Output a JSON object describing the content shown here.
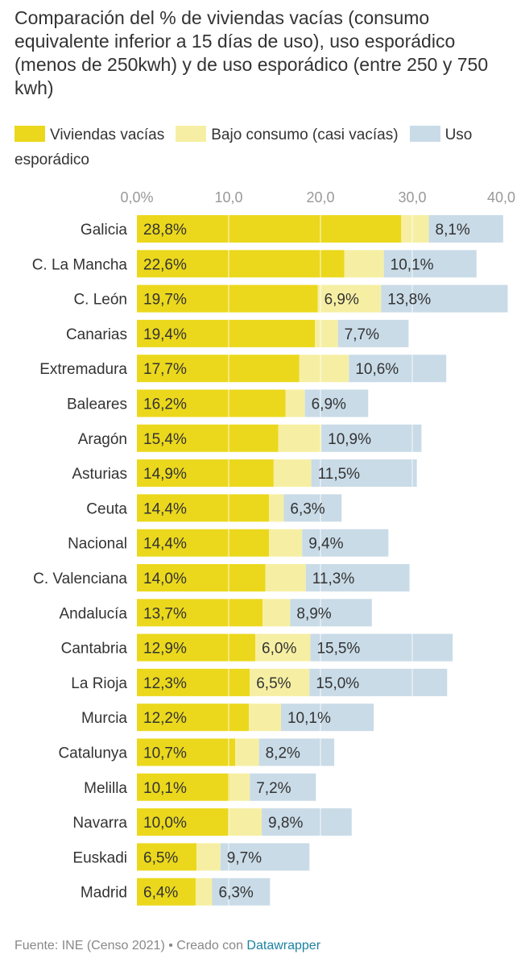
{
  "title": "Comparación del % de viviendas vacías (consumo equivalente inferior a 15 días de uso), uso esporádico (menos de 250kwh) y de uso esporádico (entre 250 y 750 kwh)",
  "footer": {
    "source": "Fuente: INE (Censo 2021) • Creado con ",
    "tool": "Datawrapper"
  },
  "chart_data": {
    "type": "bar",
    "orientation": "horizontal-stacked",
    "title": "Comparación del % de viviendas vacías (consumo equivalente inferior a 15 días de uso), uso esporádico (menos de 250kwh) y de uso esporádico (entre 250 y 750 kwh)",
    "xlim": [
      0,
      40
    ],
    "ticks": [
      "0,0%",
      "10,0",
      "20,0",
      "30,0",
      "40,0"
    ],
    "tick_values": [
      0,
      10,
      20,
      30,
      40
    ],
    "legend_position": "top",
    "categories": [
      "Galicia",
      "C. La Mancha",
      "C. León",
      "Canarias",
      "Extremadura",
      "Baleares",
      "Aragón",
      "Asturias",
      "Ceuta",
      "Nacional",
      "C. Valenciana",
      "Andalucía",
      "Cantabria",
      "La Rioja",
      "Murcia",
      "Catalunya",
      "Melilla",
      "Navarra",
      "Euskadi",
      "Madrid"
    ],
    "series": [
      {
        "name": "Viviendas vacías",
        "color": "#ebd81c",
        "values": [
          28.8,
          22.6,
          19.7,
          19.4,
          17.7,
          16.2,
          15.4,
          14.9,
          14.4,
          14.4,
          14.0,
          13.7,
          12.9,
          12.3,
          12.2,
          10.7,
          10.1,
          10.0,
          6.5,
          6.4
        ],
        "labels": [
          "28,8%",
          "22,6%",
          "19,7%",
          "19,4%",
          "17,7%",
          "16,2%",
          "15,4%",
          "14,9%",
          "14,4%",
          "14,4%",
          "14,0%",
          "13,7%",
          "12,9%",
          "12,3%",
          "12,2%",
          "10,7%",
          "10,1%",
          "10,0%",
          "6,5%",
          "6,4%"
        ]
      },
      {
        "name": "Bajo consumo (casi vacías)",
        "color": "#f6efa3",
        "values": [
          3.0,
          4.3,
          6.9,
          2.5,
          5.4,
          2.1,
          4.7,
          4.1,
          1.6,
          3.6,
          4.4,
          3.0,
          6.0,
          6.5,
          3.5,
          2.6,
          2.2,
          3.6,
          2.6,
          1.8
        ],
        "labels": [
          "",
          "",
          "6,9%",
          "",
          "",
          "",
          "",
          "",
          "",
          "",
          "",
          "",
          "6,0%",
          "6,5%",
          "",
          "",
          "",
          "",
          "",
          ""
        ]
      },
      {
        "name": "Uso esporádico",
        "color": "#c9dbe7",
        "values": [
          8.1,
          10.1,
          13.8,
          7.7,
          10.6,
          6.9,
          10.9,
          11.5,
          6.3,
          9.4,
          11.3,
          8.9,
          15.5,
          15.0,
          10.1,
          8.2,
          7.2,
          9.8,
          9.7,
          6.3
        ],
        "labels": [
          "8,1%",
          "10,1%",
          "13,8%",
          "7,7%",
          "10,6%",
          "6,9%",
          "10,9%",
          "11,5%",
          "6,3%",
          "9,4%",
          "11,3%",
          "8,9%",
          "15,5%",
          "15,0%",
          "10,1%",
          "8,2%",
          "7,2%",
          "9,8%",
          "9,7%",
          "6,3%"
        ]
      }
    ]
  }
}
